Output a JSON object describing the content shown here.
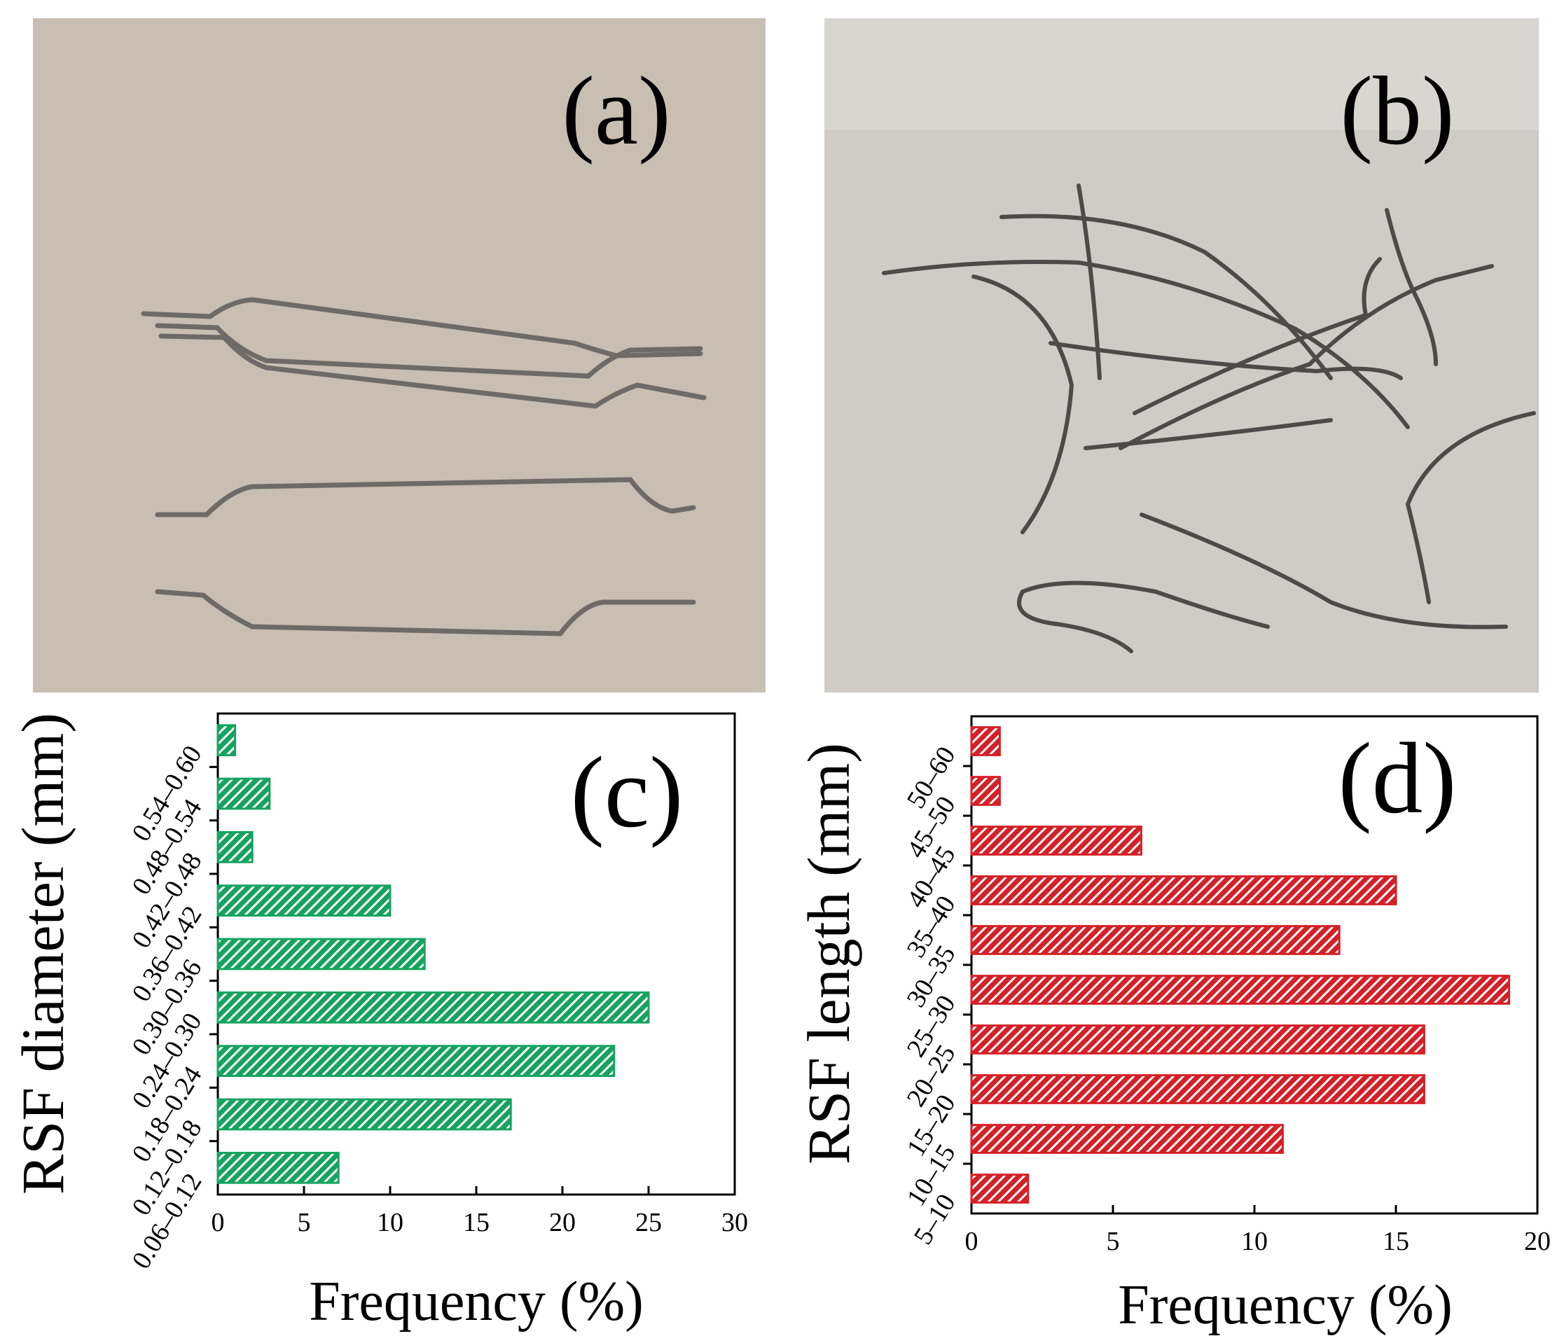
{
  "panels": {
    "a": {
      "label": "(a)"
    },
    "b": {
      "label": "(b)"
    }
  },
  "chart_data": [
    {
      "type": "bar",
      "orientation": "horizontal",
      "panel_label": "(c)",
      "categories": [
        "0.06–0.12",
        "0.12–0.18",
        "0.18–0.24",
        "0.24–0.30",
        "0.30–0.36",
        "0.36–0.42",
        "0.42–0.48",
        "0.48–0.54",
        "0.54–0.60"
      ],
      "values": [
        7,
        17,
        23,
        25,
        12,
        10,
        2,
        3,
        1
      ],
      "xlabel": "Frequency (%)",
      "ylabel": "RSF diameter (mm)",
      "xlim": [
        0,
        30
      ],
      "xticks": [
        "0",
        "5",
        "10",
        "15",
        "20",
        "25",
        "30"
      ],
      "color": "#16a35f",
      "fill": "hatched",
      "grid": false
    },
    {
      "type": "bar",
      "orientation": "horizontal",
      "panel_label": "(d)",
      "categories": [
        "5–10",
        "10–15",
        "15–20",
        "20–25",
        "25–30",
        "30–35",
        "35–40",
        "40–45",
        "45–50",
        "50–60"
      ],
      "values": [
        2,
        11,
        16,
        16,
        19,
        13,
        15,
        6,
        1,
        1
      ],
      "xlabel": "Frequency (%)",
      "ylabel": "RSF length (mm)",
      "xlim": [
        0,
        20
      ],
      "xticks": [
        "0",
        "5",
        "10",
        "15",
        "20"
      ],
      "color": "#d42027",
      "fill": "hatched",
      "grid": false
    }
  ]
}
